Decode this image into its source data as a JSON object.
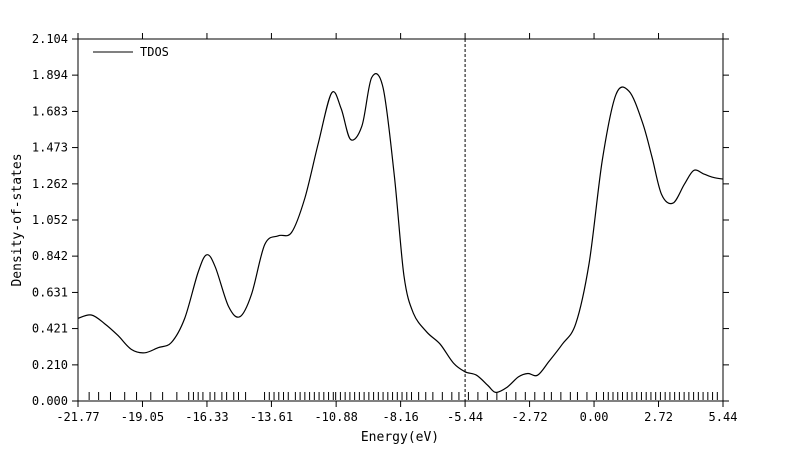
{
  "chart_data": {
    "type": "line",
    "xlabel": "Energy(eV)",
    "ylabel": "Density-of-states",
    "xlim": [
      -21.77,
      5.44
    ],
    "ylim": [
      0.0,
      2.104
    ],
    "x_ticks": [
      "-21.77",
      "-19.05",
      "-16.33",
      "-13.61",
      "-10.88",
      "-8.16",
      "-5.44",
      "-2.72",
      "0.00",
      "2.72",
      "5.44"
    ],
    "y_ticks": [
      "0.000",
      "0.210",
      "0.421",
      "0.631",
      "0.842",
      "1.052",
      "1.262",
      "1.473",
      "1.683",
      "1.894",
      "2.104"
    ],
    "legend": {
      "position": "top-left",
      "label": "TDOS"
    },
    "fermi_level": -5.44,
    "colors": {
      "line": "#000000",
      "background": "#ffffff"
    },
    "series": [
      {
        "name": "TDOS",
        "x": [
          -21.77,
          -21.21,
          -20.65,
          -20.08,
          -19.52,
          -18.96,
          -18.39,
          -17.83,
          -17.27,
          -16.7,
          -16.34,
          -15.98,
          -15.42,
          -14.94,
          -14.45,
          -13.89,
          -13.32,
          -12.76,
          -12.2,
          -11.63,
          -11.07,
          -10.67,
          -10.27,
          -9.79,
          -9.38,
          -8.9,
          -8.42,
          -8.02,
          -7.62,
          -7.05,
          -6.49,
          -5.93,
          -5.44,
          -4.96,
          -4.48,
          -4.15,
          -3.67,
          -3.19,
          -2.79,
          -2.38,
          -1.9,
          -1.34,
          -0.77,
          -0.21,
          0.35,
          0.92,
          1.48,
          2.04,
          2.44,
          2.85,
          3.33,
          3.81,
          4.21,
          4.62,
          5.02,
          5.44
        ],
        "y": [
          0.48,
          0.5,
          0.45,
          0.38,
          0.3,
          0.28,
          0.31,
          0.34,
          0.48,
          0.75,
          0.85,
          0.78,
          0.55,
          0.49,
          0.62,
          0.91,
          0.96,
          0.98,
          1.18,
          1.5,
          1.79,
          1.7,
          1.52,
          1.6,
          1.88,
          1.82,
          1.3,
          0.73,
          0.51,
          0.4,
          0.33,
          0.22,
          0.17,
          0.15,
          0.09,
          0.05,
          0.08,
          0.14,
          0.16,
          0.15,
          0.23,
          0.33,
          0.45,
          0.8,
          1.4,
          1.78,
          1.8,
          1.62,
          1.42,
          1.2,
          1.15,
          1.26,
          1.34,
          1.32,
          1.3,
          1.29
        ]
      }
    ],
    "eigenvalue_ticks": [
      -21.3,
      -20.9,
      -20.4,
      -19.8,
      -19.3,
      -18.7,
      -18.2,
      -17.6,
      -17.1,
      -16.9,
      -16.7,
      -16.5,
      -16.2,
      -16.0,
      -15.7,
      -15.5,
      -15.2,
      -15.0,
      -14.7,
      -13.9,
      -13.7,
      -13.5,
      -13.3,
      -13.1,
      -12.9,
      -12.6,
      -12.4,
      -12.2,
      -12.0,
      -11.8,
      -11.6,
      -11.4,
      -11.2,
      -11.0,
      -10.9,
      -10.7,
      -10.5,
      -10.3,
      -10.1,
      -9.9,
      -9.7,
      -9.5,
      -9.3,
      -9.1,
      -8.9,
      -8.7,
      -8.5,
      -8.3,
      -8.1,
      -7.9,
      -7.7,
      -7.4,
      -7.1,
      -6.8,
      -6.4,
      -6.0,
      -5.7,
      -5.3,
      -4.9,
      -4.5,
      -4.1,
      -3.7,
      -3.3,
      -2.9,
      -2.5,
      -2.1,
      -1.8,
      -1.4,
      -1.0,
      -0.7,
      -0.3,
      0.1,
      0.4,
      0.6,
      0.8,
      1.0,
      1.2,
      1.4,
      1.6,
      1.8,
      2.0,
      2.2,
      2.4,
      2.6,
      2.8,
      3.0,
      3.2,
      3.4,
      3.6,
      3.8,
      4.0,
      4.2,
      4.4,
      4.6,
      4.8,
      5.0,
      5.2
    ]
  }
}
